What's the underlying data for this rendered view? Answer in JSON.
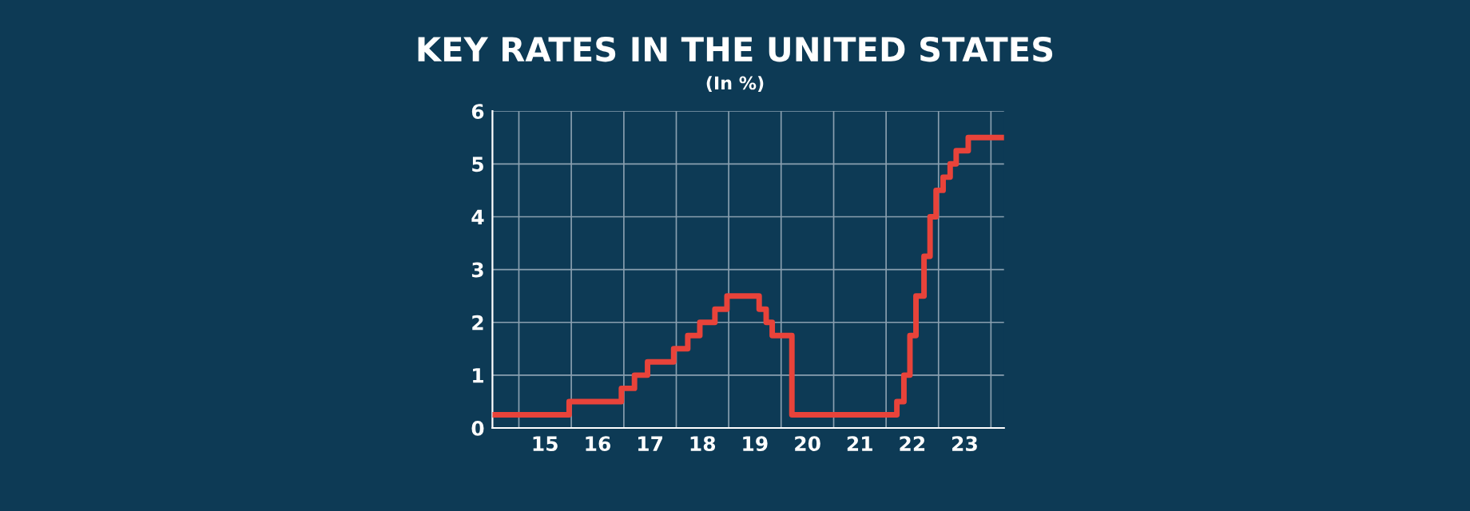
{
  "chart_data": {
    "type": "step",
    "title": "KEY RATES IN THE UNITED STATES",
    "subtitle": "(In %)",
    "x": [
      "2014-07-01",
      "2015-12-17",
      "2016-12-15",
      "2017-03-16",
      "2017-06-15",
      "2017-12-14",
      "2018-03-22",
      "2018-06-14",
      "2018-09-27",
      "2018-12-20",
      "2019-08-01",
      "2019-09-19",
      "2019-10-31",
      "2020-03-16",
      "2022-03-17",
      "2022-05-05",
      "2022-06-16",
      "2022-07-28",
      "2022-09-22",
      "2022-11-03",
      "2022-12-15",
      "2023-02-02",
      "2023-03-23",
      "2023-05-04",
      "2023-07-27",
      "2024-04-01"
    ],
    "series": [
      {
        "color": "#e8433a",
        "values": [
          0.25,
          0.5,
          0.75,
          1.0,
          1.25,
          1.5,
          1.75,
          2.0,
          2.25,
          2.5,
          2.25,
          2.0,
          1.75,
          0.25,
          0.5,
          1.0,
          1.75,
          2.5,
          3.25,
          4.0,
          4.5,
          4.75,
          5.0,
          5.25,
          5.5,
          5.5
        ]
      }
    ],
    "xlim": [
      "2014-07-01",
      "2024-04-01"
    ],
    "xticks": [
      {
        "value": "2015-01-01",
        "label": null
      },
      {
        "value": "2015-07-02",
        "label": "15"
      },
      {
        "value": "2016-01-01",
        "label": null
      },
      {
        "value": "2016-07-02",
        "label": "16"
      },
      {
        "value": "2017-01-01",
        "label": null
      },
      {
        "value": "2017-07-02",
        "label": "17"
      },
      {
        "value": "2018-01-01",
        "label": null
      },
      {
        "value": "2018-07-02",
        "label": "18"
      },
      {
        "value": "2019-01-01",
        "label": null
      },
      {
        "value": "2019-07-02",
        "label": "19"
      },
      {
        "value": "2020-01-01",
        "label": null
      },
      {
        "value": "2020-07-02",
        "label": "20"
      },
      {
        "value": "2021-01-01",
        "label": null
      },
      {
        "value": "2021-07-02",
        "label": "21"
      },
      {
        "value": "2022-01-01",
        "label": null
      },
      {
        "value": "2022-07-02",
        "label": "22"
      },
      {
        "value": "2023-01-01",
        "label": null
      },
      {
        "value": "2023-07-02",
        "label": "23"
      },
      {
        "value": "2024-01-01",
        "label": null
      }
    ],
    "ylim": [
      0,
      6
    ],
    "yticks": [
      0,
      1,
      2,
      3,
      4,
      5,
      6
    ],
    "grid": true,
    "line_style": "solid"
  }
}
